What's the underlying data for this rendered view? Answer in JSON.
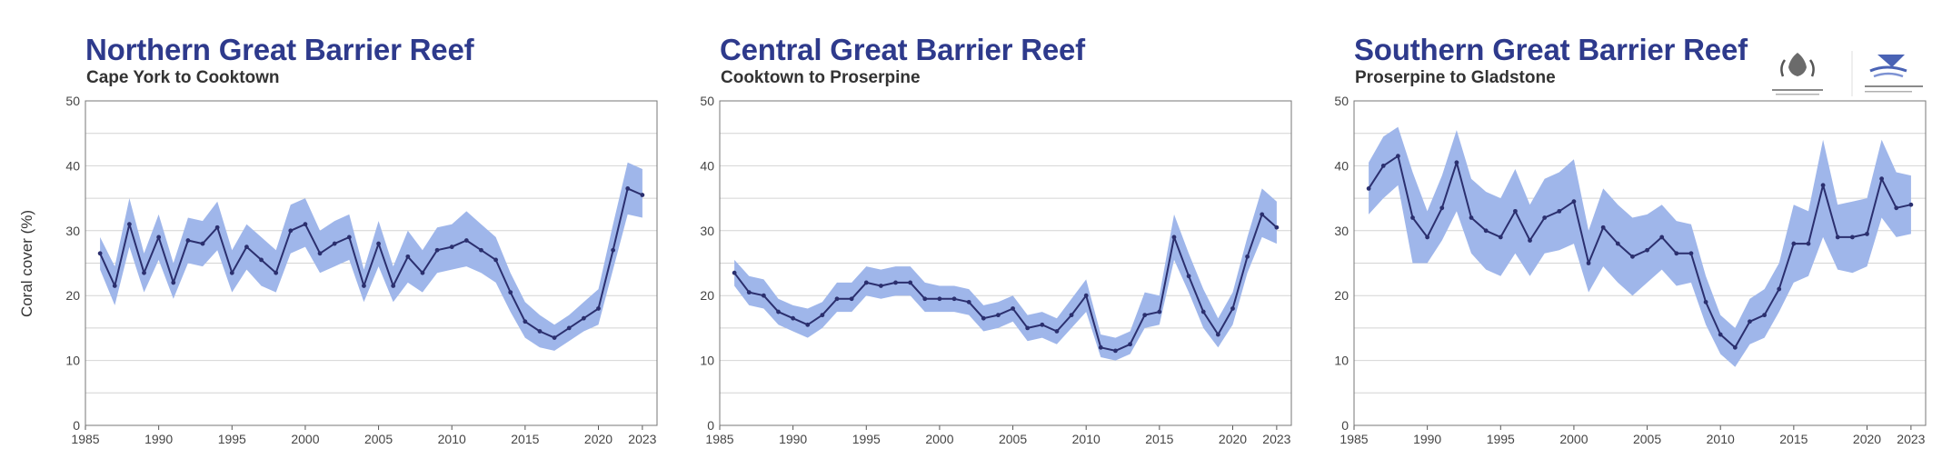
{
  "y_axis_label": "Coral cover (%)",
  "colors": {
    "title": "#2e3a8c",
    "line": "#2b2f6e",
    "band": "#9fb6ea",
    "grid": "#d4d4d4"
  },
  "chart_data": [
    {
      "type": "line",
      "title": "Northern Great Barrier Reef",
      "subtitle": "Cape York to Cooktown",
      "xlabel": "",
      "ylabel": "Coral cover (%)",
      "xlim": [
        1985,
        2024
      ],
      "ylim": [
        0,
        50
      ],
      "xticks": [
        1985,
        1990,
        1995,
        2000,
        2005,
        2010,
        2015,
        2020,
        2023
      ],
      "yticks": [
        0,
        10,
        20,
        30,
        40,
        50
      ],
      "grid": true,
      "series": [
        {
          "x": [
            1986,
            1987,
            1988,
            1989,
            1990,
            1991,
            1992,
            1993,
            1994,
            1995,
            1996,
            1997,
            1998,
            1999,
            2000,
            2001,
            2002,
            2003,
            2004,
            2005,
            2006,
            2007,
            2008,
            2009,
            2010,
            2011,
            2012,
            2013,
            2014,
            2015,
            2016,
            2017,
            2018,
            2019,
            2020,
            2021,
            2022,
            2023
          ],
          "values": [
            26.5,
            21.5,
            31.0,
            23.5,
            29.0,
            22.0,
            28.5,
            28.0,
            30.5,
            23.5,
            27.5,
            25.5,
            23.5,
            30.0,
            31.0,
            26.5,
            28.0,
            29.0,
            21.5,
            28.0,
            21.5,
            26.0,
            23.5,
            27.0,
            27.5,
            28.5,
            27.0,
            25.5,
            20.5,
            16.0,
            14.5,
            13.5,
            15.0,
            16.5,
            18.0,
            27.0,
            36.5,
            35.5
          ],
          "lower": [
            24.0,
            18.5,
            27.5,
            20.5,
            25.5,
            19.5,
            25.0,
            24.5,
            27.0,
            20.5,
            24.0,
            21.5,
            20.5,
            26.5,
            27.5,
            23.5,
            24.5,
            25.5,
            19.0,
            24.5,
            19.0,
            22.0,
            20.5,
            23.5,
            24.0,
            24.5,
            23.5,
            22.0,
            17.5,
            13.5,
            12.0,
            11.5,
            13.0,
            14.5,
            15.5,
            24.0,
            32.5,
            32.0
          ],
          "upper": [
            29.0,
            24.5,
            35.0,
            26.5,
            32.5,
            25.0,
            32.0,
            31.5,
            34.5,
            27.0,
            31.0,
            29.0,
            27.0,
            34.0,
            35.0,
            30.0,
            31.5,
            32.5,
            24.0,
            31.5,
            24.5,
            30.0,
            27.0,
            30.5,
            31.0,
            33.0,
            31.0,
            29.0,
            23.5,
            19.0,
            17.0,
            15.5,
            17.0,
            19.0,
            21.0,
            31.0,
            40.5,
            39.5
          ]
        }
      ]
    },
    {
      "type": "line",
      "title": "Central Great Barrier Reef",
      "subtitle": "Cooktown to Proserpine",
      "xlabel": "",
      "ylabel": "",
      "xlim": [
        1985,
        2024
      ],
      "ylim": [
        0,
        50
      ],
      "xticks": [
        1985,
        1990,
        1995,
        2000,
        2005,
        2010,
        2015,
        2020,
        2023
      ],
      "yticks": [
        0,
        10,
        20,
        30,
        40,
        50
      ],
      "grid": true,
      "series": [
        {
          "x": [
            1986,
            1987,
            1988,
            1989,
            1990,
            1991,
            1992,
            1993,
            1994,
            1995,
            1996,
            1997,
            1998,
            1999,
            2000,
            2001,
            2002,
            2003,
            2004,
            2005,
            2006,
            2007,
            2008,
            2009,
            2010,
            2011,
            2012,
            2013,
            2014,
            2015,
            2016,
            2017,
            2018,
            2019,
            2020,
            2021,
            2022,
            2023
          ],
          "values": [
            23.5,
            20.5,
            20.0,
            17.5,
            16.5,
            15.5,
            17.0,
            19.5,
            19.5,
            22.0,
            21.5,
            22.0,
            22.0,
            19.5,
            19.5,
            19.5,
            19.0,
            16.5,
            17.0,
            18.0,
            15.0,
            15.5,
            14.5,
            17.0,
            20.0,
            12.0,
            11.5,
            12.5,
            17.0,
            17.5,
            29.0,
            23.0,
            17.5,
            14.0,
            18.0,
            26.0,
            32.5,
            30.5
          ],
          "lower": [
            21.5,
            18.5,
            18.0,
            15.5,
            14.5,
            13.5,
            15.0,
            17.5,
            17.5,
            20.0,
            19.5,
            20.0,
            20.0,
            17.5,
            17.5,
            17.5,
            17.0,
            14.5,
            15.0,
            16.0,
            13.0,
            13.5,
            12.5,
            15.0,
            17.5,
            10.5,
            10.0,
            11.0,
            15.0,
            15.5,
            25.5,
            20.5,
            15.0,
            12.0,
            15.5,
            23.5,
            29.0,
            28.0
          ],
          "upper": [
            25.5,
            23.0,
            22.5,
            19.5,
            18.5,
            18.0,
            19.0,
            22.0,
            22.0,
            24.5,
            24.0,
            24.5,
            24.5,
            22.0,
            21.5,
            21.5,
            21.0,
            18.5,
            19.0,
            20.0,
            17.0,
            17.5,
            16.5,
            19.5,
            22.5,
            14.0,
            13.5,
            14.5,
            20.5,
            20.0,
            32.5,
            26.5,
            21.0,
            16.5,
            20.5,
            29.0,
            36.5,
            34.5
          ]
        }
      ]
    },
    {
      "type": "line",
      "title": "Southern Great Barrier Reef",
      "subtitle": "Proserpine to Gladstone",
      "xlabel": "",
      "ylabel": "",
      "xlim": [
        1985,
        2024
      ],
      "ylim": [
        0,
        50
      ],
      "xticks": [
        1985,
        1990,
        1995,
        2000,
        2005,
        2010,
        2015,
        2020,
        2023
      ],
      "yticks": [
        0,
        10,
        20,
        30,
        40,
        50
      ],
      "grid": true,
      "series": [
        {
          "x": [
            1986,
            1987,
            1988,
            1989,
            1990,
            1991,
            1992,
            1993,
            1994,
            1995,
            1996,
            1997,
            1998,
            1999,
            2000,
            2001,
            2002,
            2003,
            2004,
            2005,
            2006,
            2007,
            2008,
            2009,
            2010,
            2011,
            2012,
            2013,
            2014,
            2015,
            2016,
            2017,
            2018,
            2019,
            2020,
            2021,
            2022,
            2023
          ],
          "values": [
            36.5,
            40.0,
            41.5,
            32.0,
            29.0,
            33.5,
            40.5,
            32.0,
            30.0,
            29.0,
            33.0,
            28.5,
            32.0,
            33.0,
            34.5,
            25.0,
            30.5,
            28.0,
            26.0,
            27.0,
            29.0,
            26.5,
            26.5,
            19.0,
            14.0,
            12.0,
            16.0,
            17.0,
            21.0,
            28.0,
            28.0,
            37.0,
            29.0,
            29.0,
            29.5,
            38.0,
            33.5,
            34.0
          ],
          "lower": [
            32.5,
            35.0,
            37.0,
            25.0,
            25.0,
            28.5,
            33.0,
            26.5,
            24.0,
            23.0,
            26.5,
            23.0,
            26.5,
            27.0,
            28.0,
            20.5,
            24.5,
            22.0,
            20.0,
            22.0,
            24.0,
            21.5,
            22.0,
            15.5,
            11.0,
            9.0,
            12.5,
            13.5,
            17.5,
            22.0,
            23.0,
            29.0,
            24.0,
            23.5,
            24.5,
            32.0,
            29.0,
            29.5
          ],
          "upper": [
            40.5,
            44.5,
            46.0,
            39.0,
            33.0,
            38.5,
            45.5,
            38.0,
            36.0,
            35.0,
            39.5,
            34.0,
            38.0,
            39.0,
            41.0,
            30.0,
            36.5,
            34.0,
            32.0,
            32.5,
            34.0,
            31.5,
            31.0,
            23.0,
            17.0,
            15.0,
            19.5,
            21.0,
            25.0,
            34.0,
            33.0,
            44.0,
            34.0,
            34.5,
            35.0,
            44.0,
            39.0,
            38.5
          ]
        }
      ]
    }
  ]
}
